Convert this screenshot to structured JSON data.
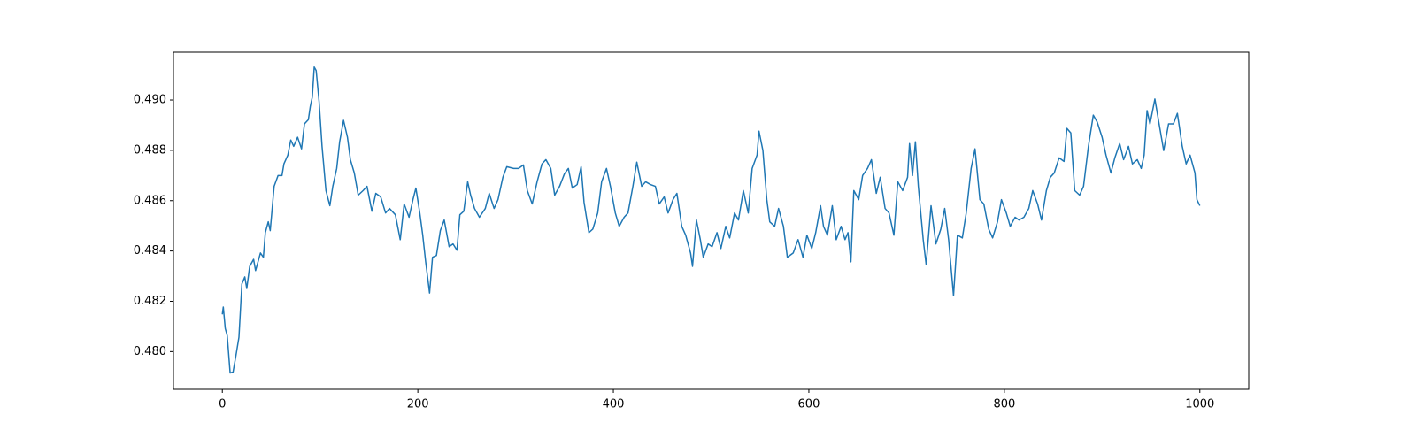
{
  "chart_data": {
    "type": "line",
    "x": [
      0,
      1,
      3,
      5,
      8,
      11,
      14,
      17,
      20,
      23,
      25,
      28,
      32,
      34,
      39,
      42,
      44,
      47,
      49,
      53,
      57,
      61,
      63,
      67,
      70,
      73,
      77,
      81,
      84,
      88,
      90,
      92,
      94,
      96,
      99,
      102,
      106,
      110,
      113,
      117,
      120,
      124,
      128,
      131,
      135,
      139,
      144,
      148,
      153,
      157,
      162,
      167,
      171,
      177,
      182,
      186,
      191,
      195,
      198,
      202,
      205,
      208,
      212,
      215,
      219,
      223,
      227,
      232,
      236,
      240,
      243,
      247,
      251,
      254,
      258,
      263,
      269,
      273,
      278,
      282,
      287,
      291,
      298,
      303,
      308,
      312,
      317,
      322,
      327,
      331,
      336,
      340,
      345,
      350,
      354,
      358,
      363,
      367,
      370,
      375,
      379,
      384,
      388,
      393,
      397,
      402,
      406,
      411,
      415,
      420,
      424,
      429,
      433,
      438,
      443,
      447,
      452,
      456,
      461,
      465,
      470,
      474,
      479,
      481,
      485,
      489,
      492,
      497,
      501,
      506,
      510,
      515,
      519,
      524,
      528,
      533,
      538,
      542,
      547,
      549,
      553,
      557,
      560,
      565,
      569,
      574,
      578,
      584,
      589,
      594,
      598,
      603,
      607,
      612,
      615,
      619,
      624,
      628,
      633,
      637,
      640,
      643,
      646,
      651,
      655,
      660,
      664,
      669,
      673,
      678,
      682,
      687,
      691,
      696,
      701,
      703,
      706,
      709,
      712,
      717,
      720,
      725,
      730,
      735,
      739,
      743,
      748,
      752,
      757,
      761,
      766,
      770,
      775,
      779,
      784,
      788,
      793,
      797,
      802,
      806,
      811,
      815,
      820,
      825,
      829,
      834,
      838,
      843,
      847,
      851,
      856,
      861,
      864,
      868,
      872,
      877,
      881,
      886,
      891,
      895,
      900,
      904,
      909,
      913,
      918,
      922,
      927,
      931,
      936,
      940,
      943,
      946,
      949,
      954,
      958,
      963,
      968,
      973,
      977,
      982,
      986,
      990,
      995,
      997,
      1000
    ],
    "series": [
      {
        "color": "#1f77b4",
        "values": [
          0.48148,
          0.48177,
          0.48092,
          0.48064,
          0.47915,
          0.47919,
          0.47986,
          0.48057,
          0.48269,
          0.48297,
          0.48251,
          0.48339,
          0.48367,
          0.48322,
          0.48392,
          0.48375,
          0.48473,
          0.48516,
          0.48481,
          0.48657,
          0.487,
          0.487,
          0.48746,
          0.48781,
          0.48841,
          0.48816,
          0.48852,
          0.48806,
          0.48905,
          0.48922,
          0.48975,
          0.49011,
          0.49131,
          0.49117,
          0.48993,
          0.48816,
          0.4864,
          0.4858,
          0.48657,
          0.48728,
          0.48834,
          0.48919,
          0.48852,
          0.48763,
          0.4871,
          0.48622,
          0.4864,
          0.48657,
          0.48558,
          0.48629,
          0.48615,
          0.48551,
          0.48569,
          0.48544,
          0.48445,
          0.48587,
          0.48534,
          0.48604,
          0.4865,
          0.48551,
          0.48463,
          0.48357,
          0.48233,
          0.48375,
          0.48382,
          0.48481,
          0.48523,
          0.48417,
          0.48428,
          0.48403,
          0.48544,
          0.48558,
          0.48675,
          0.48622,
          0.48569,
          0.48534,
          0.48569,
          0.48629,
          0.48569,
          0.48604,
          0.48693,
          0.48735,
          0.48728,
          0.48728,
          0.48742,
          0.4864,
          0.48587,
          0.48675,
          0.48746,
          0.48763,
          0.48728,
          0.48622,
          0.48657,
          0.48707,
          0.48728,
          0.4865,
          0.48664,
          0.48735,
          0.48594,
          0.48473,
          0.48487,
          0.48551,
          0.48675,
          0.48728,
          0.48657,
          0.48551,
          0.48498,
          0.48534,
          0.48551,
          0.48657,
          0.48753,
          0.48657,
          0.48675,
          0.48664,
          0.48657,
          0.48587,
          0.48615,
          0.48551,
          0.48604,
          0.48629,
          0.48498,
          0.48463,
          0.48392,
          0.48339,
          0.48523,
          0.48445,
          0.48375,
          0.48428,
          0.48417,
          0.48473,
          0.4841,
          0.48498,
          0.48452,
          0.48551,
          0.48523,
          0.4864,
          0.48551,
          0.48728,
          0.48781,
          0.48876,
          0.48799,
          0.48604,
          0.48516,
          0.48498,
          0.48569,
          0.48498,
          0.48375,
          0.48392,
          0.48445,
          0.48375,
          0.48463,
          0.4841,
          0.48473,
          0.4858,
          0.48498,
          0.48463,
          0.4858,
          0.48445,
          0.48498,
          0.48445,
          0.48473,
          0.48357,
          0.4864,
          0.48604,
          0.487,
          0.48728,
          0.48763,
          0.48629,
          0.48693,
          0.48569,
          0.48551,
          0.48463,
          0.48675,
          0.4864,
          0.48693,
          0.48827,
          0.487,
          0.48834,
          0.48657,
          0.48445,
          0.48346,
          0.4858,
          0.48428,
          0.48487,
          0.48569,
          0.48445,
          0.48223,
          0.48463,
          0.48452,
          0.48551,
          0.48728,
          0.48806,
          0.48604,
          0.48587,
          0.48487,
          0.48452,
          0.48516,
          0.48604,
          0.48551,
          0.48498,
          0.48534,
          0.48523,
          0.48534,
          0.48569,
          0.4864,
          0.48587,
          0.48523,
          0.4864,
          0.48693,
          0.4871,
          0.4877,
          0.48756,
          0.48887,
          0.48869,
          0.4864,
          0.48622,
          0.48657,
          0.48816,
          0.4894,
          0.48912,
          0.48852,
          0.48781,
          0.4871,
          0.4877,
          0.48827,
          0.48763,
          0.48816,
          0.48746,
          0.48763,
          0.48728,
          0.48781,
          0.48958,
          0.48905,
          0.49004,
          0.48912,
          0.48799,
          0.48905,
          0.48905,
          0.48947,
          0.48816,
          0.48746,
          0.48781,
          0.4871,
          0.48604,
          0.4858
        ]
      }
    ],
    "xlim": [
      -50,
      1050
    ],
    "ylim": [
      0.4785,
      0.4919
    ],
    "xticks": [
      0,
      200,
      400,
      600,
      800,
      1000
    ],
    "yticks": [
      {
        "value": 0.48,
        "label": "0.480"
      },
      0.482,
      0.484,
      0.486,
      0.488,
      {
        "value": 0.49,
        "label": "0.490"
      }
    ],
    "grid": false
  }
}
